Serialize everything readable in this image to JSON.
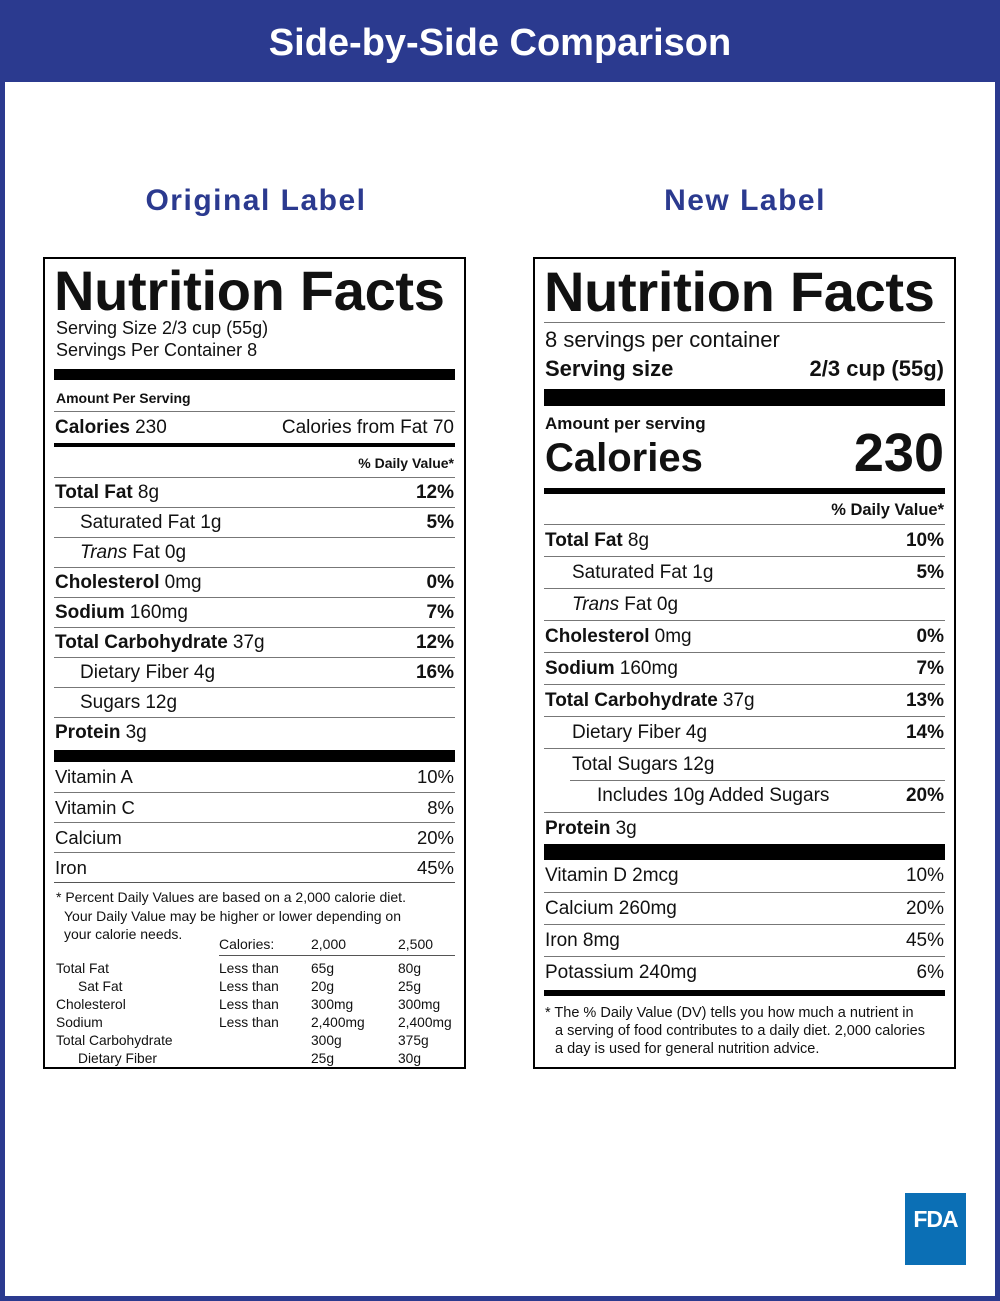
{
  "header": {
    "title": "Side-by-Side Comparison"
  },
  "original": {
    "heading": "Original Label",
    "label": {
      "title": "Nutrition Facts",
      "serving_size": "Serving Size 2/3 cup (55g)",
      "servings_per_container": "Servings Per Container 8",
      "amount_per_serving": "Amount Per Serving",
      "calories_label": "Calories",
      "calories_value": "230",
      "calories_from_fat": "Calories from Fat 70",
      "dv_header": "% Daily Value*",
      "nutrients": [
        {
          "name": "Total Fat",
          "amount": "8g",
          "dv": "12%",
          "level": 0
        },
        {
          "name": "Saturated Fat",
          "amount": "1g",
          "dv": "5%",
          "level": 1
        },
        {
          "italic_prefix": "Trans",
          "name": "Fat",
          "amount": "0g",
          "dv": null,
          "level": 1
        },
        {
          "name": "Cholesterol",
          "amount": "0mg",
          "dv": "0%",
          "level": 0
        },
        {
          "name": "Sodium",
          "amount": "160mg",
          "dv": "7%",
          "level": 0
        },
        {
          "name": "Total Carbohydrate",
          "amount": "37g",
          "dv": "12%",
          "level": 0
        },
        {
          "name": "Dietary Fiber",
          "amount": "4g",
          "dv": "16%",
          "level": 1
        },
        {
          "name": "Sugars",
          "amount": "12g",
          "dv": null,
          "level": 1
        },
        {
          "name": "Protein",
          "amount": "3g",
          "dv": null,
          "level": 0
        }
      ],
      "vitamins": [
        {
          "name": "Vitamin A",
          "dv": "10%"
        },
        {
          "name": "Vitamin C",
          "dv": "8%"
        },
        {
          "name": "Calcium",
          "dv": "20%"
        },
        {
          "name": "Iron",
          "dv": "45%"
        }
      ],
      "footnote": [
        "* Percent Daily Values are based on a 2,000 calorie diet.",
        "Your Daily Value may be higher or lower depending on",
        "your calorie needs."
      ],
      "table_header": [
        "Calories:",
        "2,000",
        "2,500"
      ],
      "table_rows": [
        {
          "cells": [
            "Total Fat",
            "Less than",
            "65g",
            "80g"
          ],
          "indent": false
        },
        {
          "cells": [
            "Sat Fat",
            "Less than",
            "20g",
            "25g"
          ],
          "indent": true
        },
        {
          "cells": [
            "Cholesterol",
            "Less than",
            "300mg",
            "300mg"
          ],
          "indent": false
        },
        {
          "cells": [
            "Sodium",
            "Less than",
            "2,400mg",
            "2,400mg"
          ],
          "indent": false
        },
        {
          "cells": [
            "Total Carbohydrate",
            null,
            "300g",
            "375g"
          ],
          "indent": false
        },
        {
          "cells": [
            "Dietary Fiber",
            null,
            "25g",
            "30g"
          ],
          "indent": true
        }
      ]
    }
  },
  "new": {
    "heading": "New Label",
    "label": {
      "title": "Nutrition Facts",
      "servings_per_container": "8 servings per container",
      "serving_size_label": "Serving size",
      "serving_size_value": "2/3 cup (55g)",
      "amount_per_serving": "Amount per serving",
      "calories_label": "Calories",
      "calories_value": "230",
      "dv_header": "% Daily Value*",
      "nutrients": [
        {
          "name": "Total Fat",
          "amount": "8g",
          "dv": "10%",
          "level": 0
        },
        {
          "name": "Saturated Fat",
          "amount": "1g",
          "dv": "5%",
          "level": 1
        },
        {
          "italic_prefix": "Trans",
          "name": "Fat",
          "amount": "0g",
          "dv": null,
          "level": 1
        },
        {
          "name": "Cholesterol",
          "amount": "0mg",
          "dv": "0%",
          "level": 0
        },
        {
          "name": "Sodium",
          "amount": "160mg",
          "dv": "7%",
          "level": 0
        },
        {
          "name": "Total Carbohydrate",
          "amount": "37g",
          "dv": "13%",
          "level": 0
        },
        {
          "name": "Dietary Fiber",
          "amount": "4g",
          "dv": "14%",
          "level": 1
        },
        {
          "name": "Total Sugars",
          "amount": "12g",
          "dv": null,
          "level": 1
        },
        {
          "name": "Includes 10g Added Sugars",
          "amount": null,
          "dv": "20%",
          "level": 2
        },
        {
          "name": "Protein",
          "amount": "3g",
          "dv": null,
          "level": 0
        }
      ],
      "vitamins": [
        {
          "name": "Vitamin D",
          "amount": "2mcg",
          "dv": "10%"
        },
        {
          "name": "Calcium",
          "amount": "260mg",
          "dv": "20%"
        },
        {
          "name": "Iron",
          "amount": "8mg",
          "dv": "45%"
        },
        {
          "name": "Potassium",
          "amount": "240mg",
          "dv": "6%"
        }
      ],
      "footnote": [
        "* The % Daily Value (DV) tells you how much a nutrient in",
        "a serving of food contributes to a daily diet. 2,000 calories",
        "a day is used for general nutrition advice."
      ]
    }
  },
  "logo": "FDA"
}
